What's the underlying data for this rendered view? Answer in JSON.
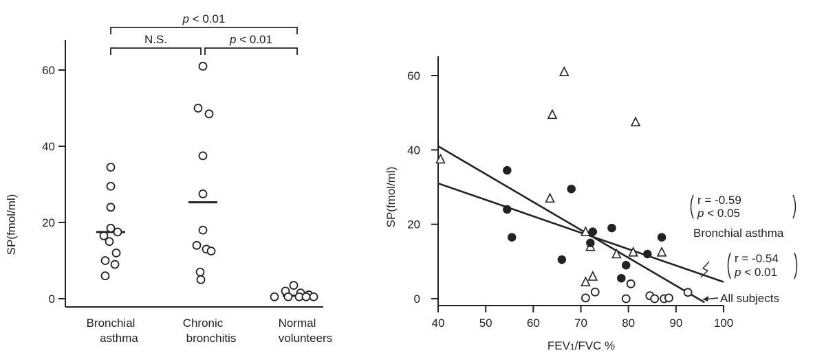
{
  "chart_data": [
    {
      "type": "scatter",
      "ylabel": "SP(fmol/ml)",
      "ylim": [
        0,
        60
      ],
      "yticks": [
        0,
        20,
        40,
        60
      ],
      "categories": [
        "Bronchial asthma",
        "Chronic bronchitis",
        "Normal volunteers"
      ],
      "category_lines": [
        [
          "Bronchial",
          "asthma"
        ],
        [
          "Chronic",
          "bronchitis"
        ],
        [
          "Normal",
          "volunteers"
        ]
      ],
      "series": [
        {
          "category": "Bronchial asthma",
          "mean": 17.5,
          "values": [
            34.5,
            29.5,
            24,
            18.5,
            17.5,
            16.5,
            15,
            12,
            10,
            9,
            6
          ]
        },
        {
          "category": "Chronic bronchitis",
          "mean": 25.3,
          "values": [
            61,
            50,
            48.5,
            37.5,
            27.5,
            18,
            14,
            13,
            12.5,
            7,
            5
          ]
        },
        {
          "category": "Normal volunteers",
          "mean": 0.8,
          "values": [
            3.5,
            2,
            1.5,
            1,
            0.5,
            0.5,
            0.5,
            0.5,
            0.5
          ]
        }
      ],
      "comparisons": [
        {
          "from": 0,
          "to": 2,
          "label": "p < 0.01",
          "p_prefix": "p",
          "p_rest": " < 0.01"
        },
        {
          "from": 0,
          "to": 1,
          "label": "N.S."
        },
        {
          "from": 1,
          "to": 2,
          "label": "p < 0.01",
          "p_prefix": "p",
          "p_rest": " < 0.01"
        }
      ]
    },
    {
      "type": "scatter",
      "xlabel": "FEV1/FVC %",
      "xlabel_main": "FEV",
      "xlabel_sub": "1",
      "xlabel_rest": "/FVC %",
      "ylabel": "SP(fmol/ml)",
      "xlim": [
        40,
        100
      ],
      "ylim": [
        0,
        60
      ],
      "xticks": [
        40,
        50,
        60,
        70,
        80,
        90,
        100
      ],
      "yticks": [
        0,
        20,
        40,
        60
      ],
      "series": [
        {
          "marker": "triangle-open",
          "points": [
            [
              40.5,
              37.5
            ],
            [
              63.5,
              27
            ],
            [
              64,
              49.5
            ],
            [
              66.5,
              61
            ],
            [
              71,
              18
            ],
            [
              71,
              4.5
            ],
            [
              72,
              14
            ],
            [
              72.5,
              6
            ],
            [
              77.5,
              12
            ],
            [
              81,
              12.5
            ],
            [
              81.5,
              47.5
            ],
            [
              87,
              12.5
            ]
          ]
        },
        {
          "marker": "circle-filled",
          "points": [
            [
              54.5,
              34.5
            ],
            [
              54.5,
              24
            ],
            [
              55.5,
              16.5
            ],
            [
              66,
              10.5
            ],
            [
              68,
              29.5
            ],
            [
              72,
              15
            ],
            [
              72.5,
              18
            ],
            [
              76.5,
              19
            ],
            [
              78.5,
              5.5
            ],
            [
              79.5,
              9
            ],
            [
              84,
              12
            ],
            [
              87,
              16.5
            ]
          ]
        },
        {
          "marker": "circle-open",
          "points": [
            [
              71,
              0.2
            ],
            [
              73,
              1.8
            ],
            [
              79.5,
              0
            ],
            [
              80.5,
              4
            ],
            [
              84.5,
              0.8
            ],
            [
              85.5,
              0
            ],
            [
              87.5,
              0
            ],
            [
              88.5,
              0.2
            ],
            [
              92.5,
              1.7
            ]
          ]
        }
      ],
      "regressions": [
        {
          "name": "Bronchial asthma",
          "from": [
            40,
            31
          ],
          "to": [
            100,
            4.5
          ],
          "r": "r = -0.59",
          "p_prefix": "p",
          "p_rest": " < 0.05"
        },
        {
          "name": "All subjects",
          "from": [
            40,
            41
          ],
          "to": [
            96,
            -1
          ],
          "r": "r = -0.54",
          "p_prefix": "p",
          "p_rest": " < 0.01"
        }
      ]
    }
  ]
}
